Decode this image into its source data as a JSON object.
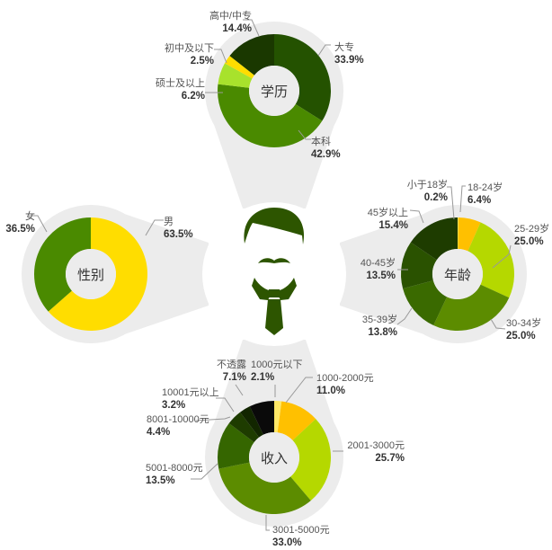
{
  "chart_data": [
    {
      "type": "pie",
      "donut": true,
      "title": "学历",
      "start": "top",
      "direction": "clockwise",
      "slices": [
        {
          "label": "大专",
          "value": 33.9,
          "display": "33.9%",
          "color": "#245200"
        },
        {
          "label": "本科",
          "value": 42.9,
          "display": "42.9%",
          "color": "#4a8a00"
        },
        {
          "label": "硕士及以上",
          "value": 6.2,
          "display": "6.2%",
          "color": "#a8e22c"
        },
        {
          "label": "初中及以下",
          "value": 2.5,
          "display": "2.5%",
          "color": "#ffdd00"
        },
        {
          "label": "高中/中专",
          "value": 14.4,
          "display": "14.4%",
          "color": "#1a3800"
        }
      ]
    },
    {
      "type": "pie",
      "donut": true,
      "title": "性别",
      "start": "top",
      "direction": "clockwise",
      "slices": [
        {
          "label": "男",
          "value": 63.5,
          "display": "63.5%",
          "color": "#ffdd00"
        },
        {
          "label": "女",
          "value": 36.5,
          "display": "36.5%",
          "color": "#4a8a00"
        }
      ]
    },
    {
      "type": "pie",
      "donut": true,
      "title": "年龄",
      "start": "top",
      "direction": "clockwise",
      "slices": [
        {
          "label": "小于18岁",
          "value": 0.2,
          "display": "0.2%",
          "color": "#ffee66"
        },
        {
          "label": "18-24岁",
          "value": 6.4,
          "display": "6.4%",
          "color": "#ffc000"
        },
        {
          "label": "25-29岁",
          "value": 25.0,
          "display": "25.0%",
          "color": "#b5d800"
        },
        {
          "label": "30-34岁",
          "value": 25.0,
          "display": "25.0%",
          "color": "#5c8c00"
        },
        {
          "label": "35-39岁",
          "value": 13.8,
          "display": "13.8%",
          "color": "#3a6a00"
        },
        {
          "label": "40-45岁",
          "value": 13.5,
          "display": "13.5%",
          "color": "#2a5200"
        },
        {
          "label": "45岁以上",
          "value": 15.4,
          "display": "15.4%",
          "color": "#1e3c00"
        }
      ]
    },
    {
      "type": "pie",
      "donut": true,
      "title": "收入",
      "start": "top",
      "direction": "clockwise",
      "slices": [
        {
          "label": "1000元以下",
          "value": 2.1,
          "display": "2.1%",
          "color": "#ffe866"
        },
        {
          "label": "1000-2000元",
          "value": 11.0,
          "display": "11.0%",
          "color": "#ffc000"
        },
        {
          "label": "2001-3000元",
          "value": 25.7,
          "display": "25.7%",
          "color": "#b5d800"
        },
        {
          "label": "3001-5000元",
          "value": 33.0,
          "display": "33.0%",
          "color": "#5c8c00"
        },
        {
          "label": "5001-8000元",
          "value": 13.5,
          "display": "13.5%",
          "color": "#356600"
        },
        {
          "label": "8001-10000元",
          "value": 4.4,
          "display": "4.4%",
          "color": "#1e3c00"
        },
        {
          "label": "10001元以上",
          "value": 3.2,
          "display": "3.2%",
          "color": "#122600"
        },
        {
          "label": "不透露",
          "value": 7.1,
          "display": "7.1%",
          "color": "#0a0a0a"
        }
      ]
    }
  ],
  "colors": {
    "background_shape": "#ececec",
    "figure": "#2d5500"
  }
}
